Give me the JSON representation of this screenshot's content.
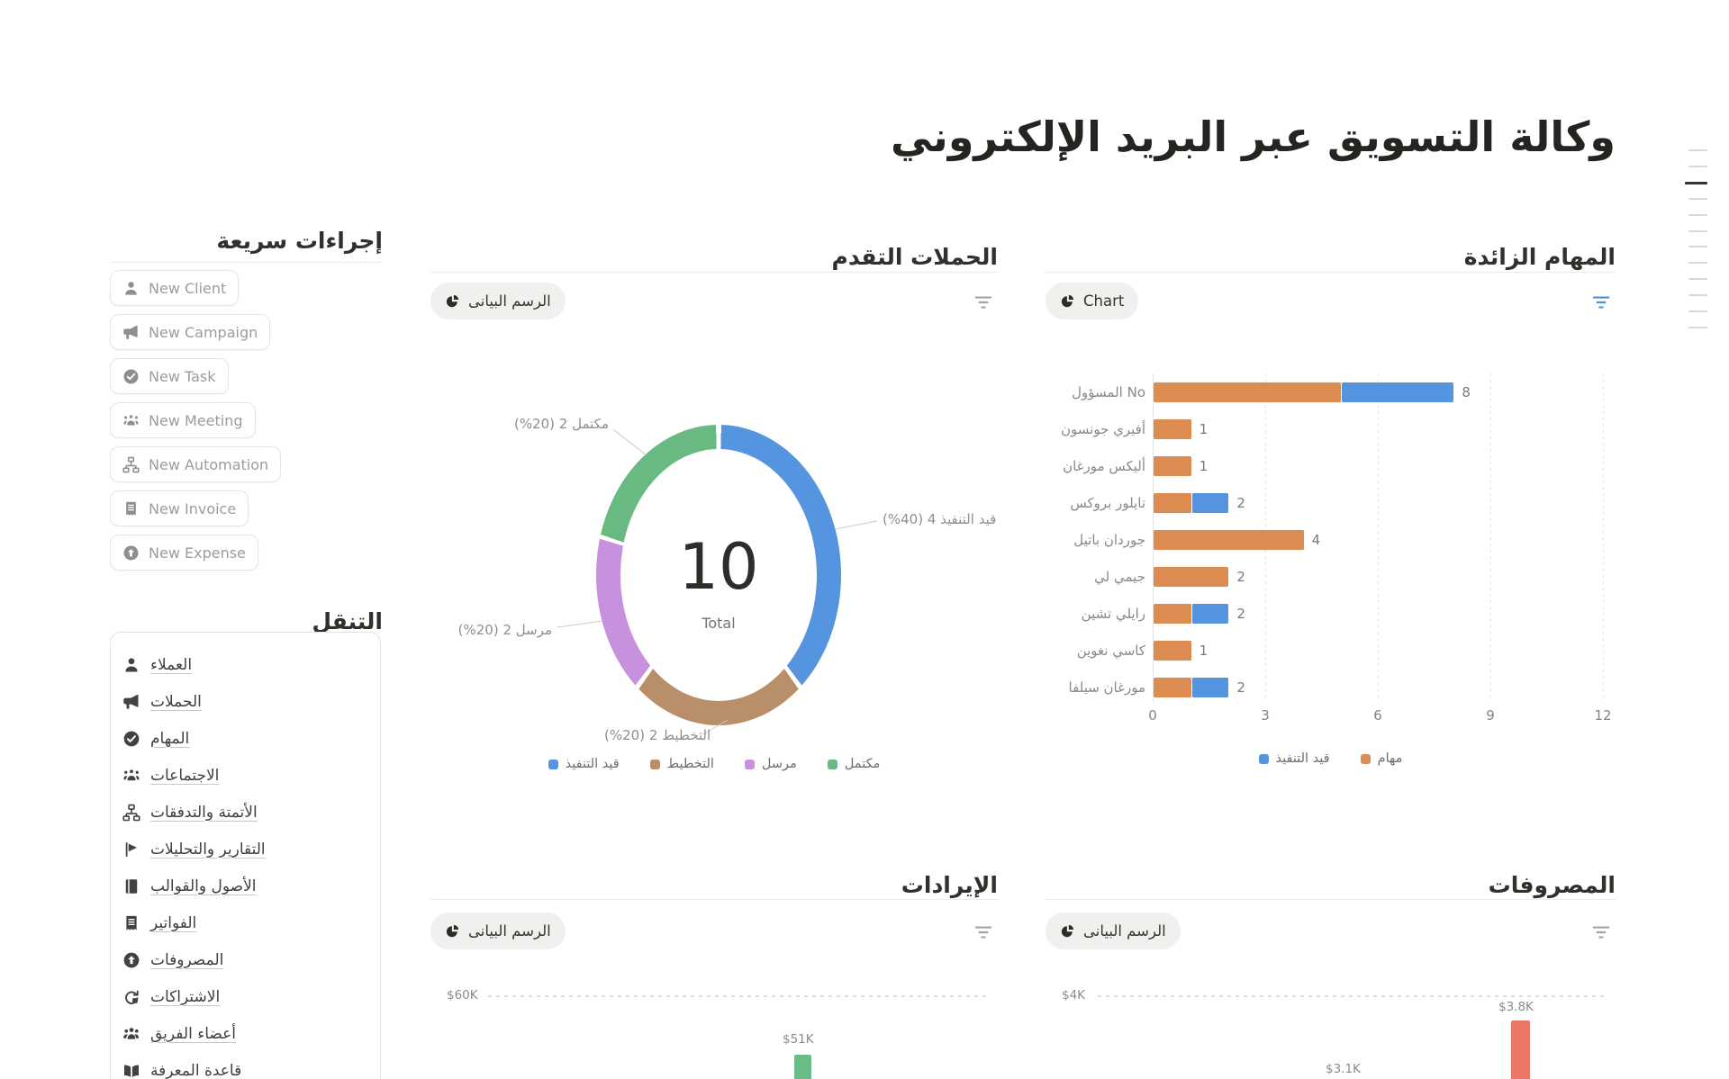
{
  "page": {
    "title": "وكالة التسويق عبر البريد الإلكتروني"
  },
  "outline": {
    "dash_count": 12,
    "active_index": 2
  },
  "quick_actions": {
    "heading": "إجراءات سريعة",
    "buttons": [
      {
        "key": "new-client",
        "label": "New Client",
        "icon": "person"
      },
      {
        "key": "new-campaign",
        "label": "New Campaign",
        "icon": "megaphone"
      },
      {
        "key": "new-task",
        "label": "New Task",
        "icon": "check-circle"
      },
      {
        "key": "new-meeting",
        "label": "New Meeting",
        "icon": "meeting"
      },
      {
        "key": "new-automation",
        "label": "New Automation",
        "icon": "flow"
      },
      {
        "key": "new-invoice",
        "label": "New Invoice",
        "icon": "receipt"
      },
      {
        "key": "new-expense",
        "label": "New Expense",
        "icon": "arrow-up-circle"
      }
    ]
  },
  "navigation": {
    "heading": "التنقل",
    "items": [
      {
        "key": "clients",
        "label": "العملاء",
        "icon": "person"
      },
      {
        "key": "campaigns",
        "label": "الحملات",
        "icon": "megaphone"
      },
      {
        "key": "tasks",
        "label": "المهام",
        "icon": "check-circle"
      },
      {
        "key": "meetings",
        "label": "الاجتماعات",
        "icon": "meeting"
      },
      {
        "key": "automations",
        "label": "الأتمتة والتدفقات",
        "icon": "flow"
      },
      {
        "key": "reports",
        "label": "التقارير والتحليلات",
        "icon": "flag"
      },
      {
        "key": "assets",
        "label": "الأصول والقوالب",
        "icon": "book"
      },
      {
        "key": "invoices",
        "label": "الفواتير",
        "icon": "receipt"
      },
      {
        "key": "expenses",
        "label": "المصروفات",
        "icon": "arrow-up-circle"
      },
      {
        "key": "subscriptions",
        "label": "الاشتراكات",
        "icon": "repeat"
      },
      {
        "key": "team",
        "label": "أعضاء الفريق",
        "icon": "people"
      },
      {
        "key": "knowledge",
        "label": "قاعدة المعرفة",
        "icon": "open-book"
      }
    ]
  },
  "panels": {
    "campaigns": {
      "heading": "الحملات التقدم",
      "tab_label": "الرسم البيانى",
      "chart_data": {
        "type": "pie",
        "total": 10,
        "total_label": "Total",
        "slices": [
          {
            "label": "قيد التنفيذ",
            "value": 4,
            "pct": 40,
            "color": "#5595E0",
            "callout": "قيد التنفيذ 4 (40%)"
          },
          {
            "label": "التخطيط",
            "value": 2,
            "pct": 20,
            "color": "#B98F69",
            "callout": "التخطيط 2 (20%)"
          },
          {
            "label": "مرسل",
            "value": 2,
            "pct": 20,
            "color": "#C791DE",
            "callout": "مرسل 2 (20%)"
          },
          {
            "label": "مكتمل",
            "value": 2,
            "pct": 20,
            "color": "#69B983",
            "callout": "مكتمل 2 (20%)"
          }
        ],
        "legend_position": "bottom"
      }
    },
    "tasks": {
      "heading": "المهام الزائدة",
      "tab_label": "Chart",
      "chart_data": {
        "type": "bar",
        "orientation": "horizontal",
        "categories": [
          "No المسؤول",
          "أفيري جونسون",
          "أليكس مورغان",
          "تايلور بروكس",
          "جوردان باتيل",
          "جيمي لي",
          "رايلي تشين",
          "كاسي نغوين",
          "مورغان سيلفا"
        ],
        "series": [
          {
            "name": "مهام",
            "color": "#DD8C51",
            "values": [
              5,
              1,
              1,
              1,
              4,
              2,
              1,
              1,
              1
            ]
          },
          {
            "name": "قيد التنفيذ",
            "color": "#5595E0",
            "values": [
              3,
              0,
              0,
              1,
              0,
              0,
              1,
              0,
              1
            ]
          }
        ],
        "totals": [
          8,
          1,
          1,
          2,
          4,
          2,
          2,
          1,
          2
        ],
        "x_ticks": [
          0,
          3,
          6,
          9,
          12
        ],
        "xlim": [
          0,
          12
        ],
        "legend": [
          {
            "label": "قيد التنفيذ",
            "color": "#5595E0"
          },
          {
            "label": "مهام",
            "color": "#DD8C51"
          }
        ],
        "legend_position": "bottom"
      }
    },
    "revenue": {
      "heading": "الإيرادات",
      "tab_label": "الرسم البيانى",
      "chart_data": {
        "type": "bar",
        "y_axis_top_label": "$60K",
        "visible_bars": [
          {
            "value_label": "$51K",
            "color": "#6ABC87"
          }
        ]
      }
    },
    "expenses": {
      "heading": "المصروفات",
      "tab_label": "الرسم البيانى",
      "chart_data": {
        "type": "bar",
        "y_axis_top_label": "$4K",
        "visible_bars": [
          {
            "value_label": "$3.1K",
            "color": null
          },
          {
            "value_label": "$3.8K",
            "color": "#E97667"
          }
        ]
      }
    }
  },
  "colors": {
    "blue": "#5595E0",
    "orange": "#DD8C51",
    "tan": "#B98F69",
    "purple": "#C791DE",
    "green": "#69B983",
    "revenue_green": "#6ABC87",
    "expense_red": "#E97667",
    "active_filter": "#4E8FD5",
    "text_dark": "#37352F",
    "text_muted": "#8F8E8B"
  }
}
